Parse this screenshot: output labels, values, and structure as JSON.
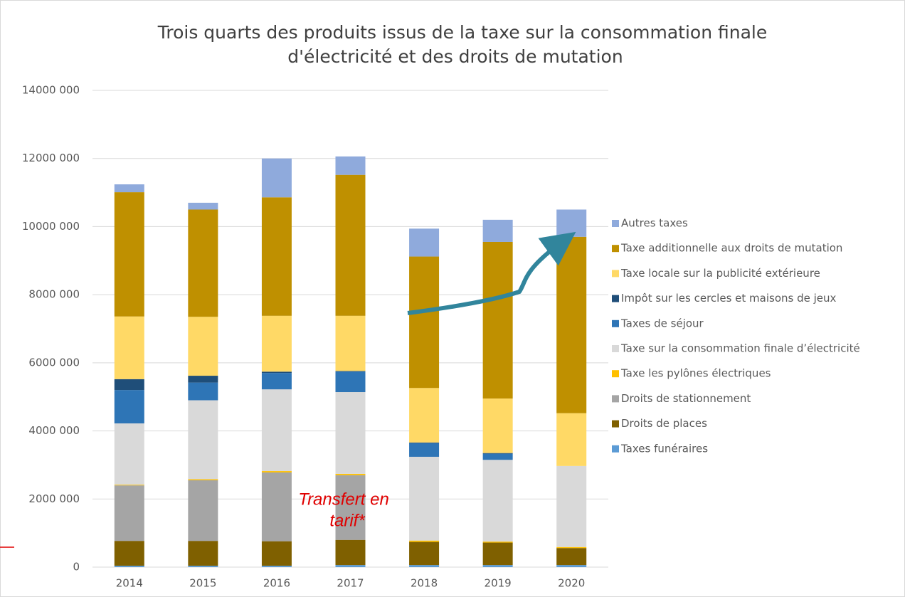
{
  "chart_data": {
    "type": "stacked_bar",
    "title": [
      "Trois quarts des produits issus de la taxe sur la consommation finale",
      "d'électricité et des droits de mutation"
    ],
    "annotation": [
      "Transfert en",
      "tarif*"
    ],
    "categories": [
      "2014",
      "2015",
      "2016",
      "2017",
      "2018",
      "2019",
      "2020"
    ],
    "ylim": [
      0,
      14000000
    ],
    "yticks": [
      0,
      {
        "value": 2000000,
        "label": "2000 000"
      },
      {
        "value": 4000000,
        "label": "4000 000"
      },
      {
        "value": 6000000,
        "label": "6000 000"
      },
      {
        "value": 8000000,
        "label": "8000 000"
      },
      {
        "value": 10000000,
        "label": "10000 000"
      },
      {
        "value": 12000000,
        "label": "12000 000"
      },
      {
        "value": 14000000,
        "label": "14000 000"
      }
    ],
    "grid": true,
    "legend": "right",
    "series": [
      {
        "name": "Taxes funéraires",
        "color": "#5b9bd5",
        "values": [
          40000,
          40000,
          40000,
          60000,
          60000,
          60000,
          60000
        ]
      },
      {
        "name": "Droits de places",
        "color": "#7f6000",
        "values": [
          730000,
          730000,
          720000,
          740000,
          680000,
          660000,
          500000
        ]
      },
      {
        "name": "Droits de stationnement",
        "color": "#a5a5a5",
        "values": [
          1630000,
          1780000,
          2020000,
          1900000,
          0,
          0,
          0
        ]
      },
      {
        "name": "Taxe les pylônes électriques",
        "color": "#ffc000",
        "values": [
          20000,
          30000,
          40000,
          40000,
          40000,
          30000,
          30000
        ]
      },
      {
        "name": "Taxe sur la consommation finale d’électricité",
        "color": "#d9d9d9",
        "values": [
          1800000,
          2320000,
          2400000,
          2400000,
          2460000,
          2400000,
          2380000
        ]
      },
      {
        "name": "Taxes de séjour",
        "color": "#2e75b6",
        "values": [
          980000,
          520000,
          480000,
          600000,
          400000,
          180000,
          0
        ]
      },
      {
        "name": "Impôt sur les cercles et maisons de jeux",
        "color": "#1f4e79",
        "values": [
          320000,
          200000,
          40000,
          20000,
          20000,
          20000,
          0
        ]
      },
      {
        "name": "Taxe locale sur la publicité extérieure",
        "color": "#ffd966",
        "values": [
          1840000,
          1730000,
          1640000,
          1620000,
          1600000,
          1600000,
          1550000
        ]
      },
      {
        "name": "Taxe additionnelle aux droits de mutation",
        "color": "#bf9000",
        "values": [
          3650000,
          3150000,
          3480000,
          4140000,
          3860000,
          4600000,
          5180000
        ]
      },
      {
        "name": "Autres taxes",
        "color": "#8faadc",
        "values": [
          230000,
          200000,
          1140000,
          540000,
          820000,
          650000,
          800000
        ]
      }
    ]
  }
}
